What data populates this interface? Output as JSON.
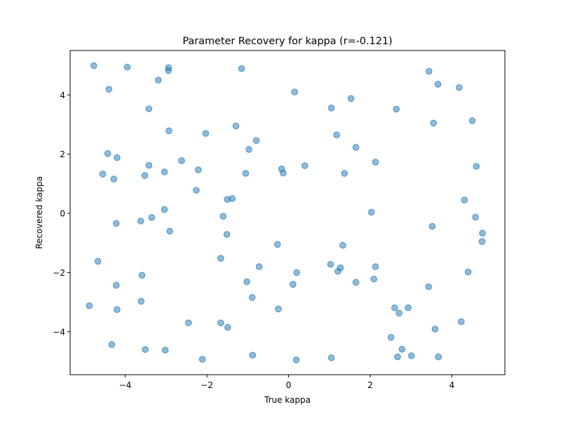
{
  "chart_data": {
    "type": "scatter",
    "title": "Parameter Recovery for kappa (r=-0.121)",
    "xlabel": "True kappa",
    "ylabel": "Recovered kappa",
    "xlim": [
      -5.35,
      5.3
    ],
    "ylim": [
      -5.45,
      5.5
    ],
    "xticks": [
      -4,
      -2,
      0,
      2,
      4
    ],
    "yticks": [
      -4,
      -2,
      0,
      2,
      4
    ],
    "xtick_labels": [
      "−4",
      "−2",
      "0",
      "2",
      "4"
    ],
    "ytick_labels": [
      "−4",
      "−2",
      "0",
      "2",
      "4"
    ],
    "grid": false,
    "legend": false,
    "marker_color": "#1f77b4",
    "marker_alpha": 0.5,
    "points": [
      [
        -4.77,
        4.99
      ],
      [
        -3.95,
        4.94
      ],
      [
        -2.94,
        4.92
      ],
      [
        -2.94,
        4.82
      ],
      [
        -1.15,
        4.89
      ],
      [
        -4.4,
        4.19
      ],
      [
        -3.19,
        4.5
      ],
      [
        -3.42,
        3.53
      ],
      [
        0.15,
        4.1
      ],
      [
        1.05,
        3.56
      ],
      [
        1.53,
        3.88
      ],
      [
        2.64,
        3.52
      ],
      [
        3.44,
        4.8
      ],
      [
        3.66,
        4.36
      ],
      [
        4.18,
        4.25
      ],
      [
        3.55,
        3.05
      ],
      [
        4.5,
        3.13
      ],
      [
        -2.93,
        2.79
      ],
      [
        -2.03,
        2.7
      ],
      [
        -1.29,
        2.95
      ],
      [
        -0.79,
        2.46
      ],
      [
        -0.97,
        2.16
      ],
      [
        1.18,
        2.65
      ],
      [
        1.65,
        2.23
      ],
      [
        2.13,
        1.73
      ],
      [
        -4.43,
        2.02
      ],
      [
        -4.2,
        1.88
      ],
      [
        -4.55,
        1.33
      ],
      [
        -4.28,
        1.16
      ],
      [
        -3.42,
        1.62
      ],
      [
        -3.52,
        1.28
      ],
      [
        -3.04,
        1.4
      ],
      [
        -2.62,
        1.78
      ],
      [
        -2.21,
        1.47
      ],
      [
        -2.26,
        0.78
      ],
      [
        -1.05,
        1.35
      ],
      [
        -0.17,
        1.5
      ],
      [
        -0.13,
        1.36
      ],
      [
        0.4,
        1.61
      ],
      [
        1.37,
        1.35
      ],
      [
        4.6,
        1.59
      ],
      [
        -1.5,
        0.47
      ],
      [
        -1.38,
        0.5
      ],
      [
        -3.04,
        0.13
      ],
      [
        -1.6,
        -0.1
      ],
      [
        -4.22,
        -0.34
      ],
      [
        -3.62,
        -0.26
      ],
      [
        -3.35,
        -0.14
      ],
      [
        -2.91,
        -0.6
      ],
      [
        -1.51,
        -0.71
      ],
      [
        2.03,
        0.04
      ],
      [
        4.31,
        0.45
      ],
      [
        4.58,
        -0.13
      ],
      [
        3.52,
        -0.44
      ],
      [
        4.75,
        -0.67
      ],
      [
        4.74,
        -0.95
      ],
      [
        -4.67,
        -1.62
      ],
      [
        -3.59,
        -2.09
      ],
      [
        -4.22,
        -2.43
      ],
      [
        -1.66,
        -1.52
      ],
      [
        -0.72,
        -1.8
      ],
      [
        -0.27,
        -1.05
      ],
      [
        -1.02,
        -2.31
      ],
      [
        0.2,
        -2.0
      ],
      [
        0.11,
        -2.4
      ],
      [
        1.03,
        -1.72
      ],
      [
        1.27,
        -1.84
      ],
      [
        1.33,
        -1.08
      ],
      [
        1.21,
        -1.96
      ],
      [
        2.13,
        -1.8
      ],
      [
        1.65,
        -2.33
      ],
      [
        2.09,
        -2.22
      ],
      [
        4.4,
        -1.98
      ],
      [
        3.43,
        -2.48
      ],
      [
        -4.88,
        -3.12
      ],
      [
        -4.2,
        -3.25
      ],
      [
        -3.61,
        -2.97
      ],
      [
        -2.45,
        -3.7
      ],
      [
        -1.66,
        -3.7
      ],
      [
        -1.49,
        -3.85
      ],
      [
        -0.89,
        -2.84
      ],
      [
        -0.25,
        -3.23
      ],
      [
        2.6,
        -3.19
      ],
      [
        2.71,
        -3.37
      ],
      [
        2.93,
        -3.19
      ],
      [
        3.59,
        -3.91
      ],
      [
        4.23,
        -3.66
      ],
      [
        -4.33,
        -4.43
      ],
      [
        -3.51,
        -4.6
      ],
      [
        -3.02,
        -4.62
      ],
      [
        -2.11,
        -4.93
      ],
      [
        -0.88,
        -4.79
      ],
      [
        0.19,
        -4.95
      ],
      [
        1.05,
        -4.88
      ],
      [
        2.51,
        -4.19
      ],
      [
        2.78,
        -4.59
      ],
      [
        2.67,
        -4.85
      ],
      [
        3.01,
        -4.81
      ],
      [
        3.67,
        -4.85
      ]
    ]
  }
}
